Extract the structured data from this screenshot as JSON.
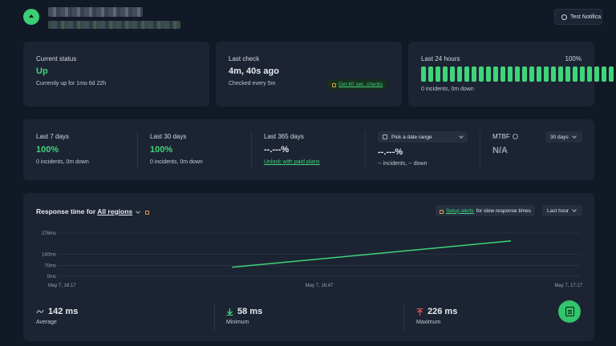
{
  "header": {
    "test_button": "Test Notifica"
  },
  "status": {
    "current": {
      "label": "Current status",
      "value": "Up",
      "sub": "Currently up for 1mo 6d 22h"
    },
    "last_check": {
      "label": "Last check",
      "value": "4m, 40s ago",
      "sub": "Checked every 5m",
      "cta": "Get 60 sec. checks"
    },
    "last_24": {
      "label": "Last 24 hours",
      "percent": "100%",
      "sub": "0 incidents, 0m down",
      "bar_count": 30
    }
  },
  "stats": {
    "d7": {
      "label": "Last 7 days",
      "value": "100%",
      "sub": "0 incidents, 0m down"
    },
    "d30": {
      "label": "Last 30 days",
      "value": "100%",
      "sub": "0 incidents, 0m down"
    },
    "d365": {
      "label": "Last 365 days",
      "value": "--.---%",
      "link": "Unlock with paid plans"
    },
    "range": {
      "picker": "Pick a date range",
      "value": "--.---%",
      "sub": "-- incidents, -- down"
    },
    "mtbf": {
      "label": "MTBF",
      "value": "N/A",
      "select": "30 days"
    }
  },
  "response": {
    "title_prefix": "Response time for",
    "region": "All regions",
    "alert_link": "Setup alerts",
    "alert_text": "for slow response times",
    "period": "Last hour",
    "summary": [
      {
        "value": "142 ms",
        "label": "Average"
      },
      {
        "value": "58 ms",
        "label": "Minimum"
      },
      {
        "value": "226 ms",
        "label": "Maximum"
      }
    ]
  },
  "colors": {
    "accent": "#3fd47a",
    "card": "#1c2433",
    "background": "#111826"
  },
  "chart_data": {
    "type": "line",
    "y_ticks": [
      "276ms",
      "140ms",
      "70ms",
      "0ms"
    ],
    "y_tick_values": [
      276,
      140,
      70,
      0
    ],
    "x_ticks": [
      "May 7, 16:17",
      "May 7, 16:47",
      "May 7, 17:17"
    ],
    "ylim": [
      0,
      276
    ],
    "xlim": [
      "16:17",
      "17:17"
    ],
    "series": [
      {
        "x": [
          "16:37",
          "17:09"
        ],
        "y": [
          58,
          226
        ]
      }
    ],
    "grid": true
  }
}
